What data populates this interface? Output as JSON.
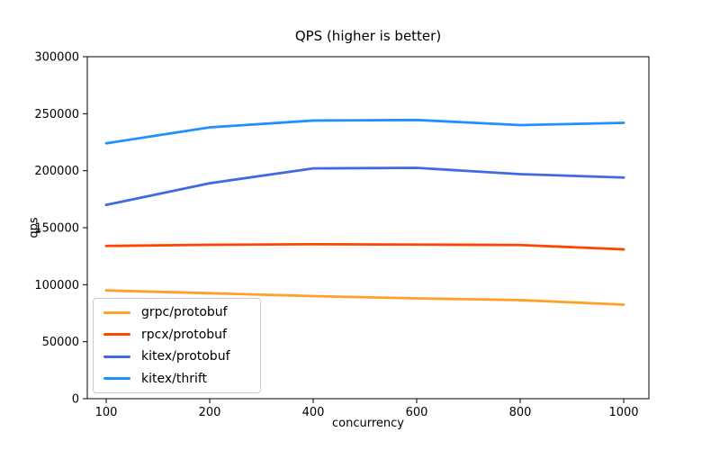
{
  "figure": {
    "title": "QPS (higher is better)",
    "xlabel": "concurrency",
    "ylabel": "qps"
  },
  "chart_data": {
    "type": "line",
    "title": "QPS (higher is better)",
    "xlabel": "concurrency",
    "ylabel": "qps",
    "categories": [
      "100",
      "200",
      "400",
      "600",
      "800",
      "1000"
    ],
    "series": [
      {
        "name": "grpc/protobuf",
        "color": "#ffa029",
        "values": [
          95000,
          92500,
          90000,
          88000,
          86500,
          82500
        ]
      },
      {
        "name": "rpcx/protobuf",
        "color": "#ff4500",
        "values": [
          134000,
          135000,
          135500,
          135200,
          134800,
          131000
        ]
      },
      {
        "name": "kitex/protobuf",
        "color": "#4169e1",
        "values": [
          170000,
          189000,
          202000,
          202500,
          197000,
          194000
        ]
      },
      {
        "name": "kitex/thrift",
        "color": "#1e90ff",
        "values": [
          224000,
          238000,
          244000,
          244500,
          240000,
          242000
        ]
      }
    ],
    "ylim": [
      0,
      300000
    ],
    "yticks": [
      0,
      50000,
      100000,
      150000,
      200000,
      250000,
      300000
    ],
    "grid": false,
    "legend_position": "lower left",
    "axis_color": "#000000",
    "background_color": "#ffffff"
  }
}
